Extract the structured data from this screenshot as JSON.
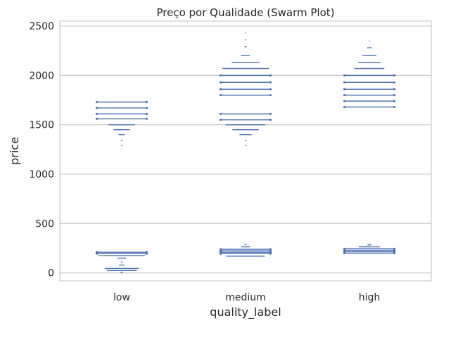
{
  "chart_data": {
    "type": "scatter",
    "subtype": "swarm",
    "title": "Preço por Qualidade (Swarm Plot)",
    "xlabel": "quality_label",
    "ylabel": "price",
    "categories": [
      "low",
      "medium",
      "high"
    ],
    "ylim": [
      -80,
      2550
    ],
    "yticks": [
      0,
      500,
      1000,
      1500,
      2000,
      2500
    ],
    "grid": true,
    "legend": "none",
    "marker_color": "#4c72b0",
    "groups": [
      {
        "category": "low",
        "bands": [
          {
            "price": 1290,
            "count": 2
          },
          {
            "price": 1340,
            "count": 3
          },
          {
            "price": 1400,
            "count": 14
          },
          {
            "price": 1450,
            "count": 38
          },
          {
            "price": 1500,
            "count": 62
          },
          {
            "price": 1560,
            "count": 120
          },
          {
            "price": 1610,
            "count": 120
          },
          {
            "price": 1670,
            "count": 120
          },
          {
            "price": 1730,
            "count": 120
          },
          {
            "price": 5,
            "count": 6
          },
          {
            "price": 25,
            "count": 70
          },
          {
            "price": 45,
            "count": 80
          },
          {
            "price": 80,
            "count": 12
          },
          {
            "price": 110,
            "count": 3
          },
          {
            "price": 150,
            "count": 20
          },
          {
            "price": 175,
            "count": 110
          },
          {
            "price": 195,
            "count": 120
          },
          {
            "price": 210,
            "count": 120
          }
        ]
      },
      {
        "category": "medium",
        "bands": [
          {
            "price": 1290,
            "count": 2
          },
          {
            "price": 1340,
            "count": 3
          },
          {
            "price": 1400,
            "count": 28
          },
          {
            "price": 1450,
            "count": 62
          },
          {
            "price": 1500,
            "count": 94
          },
          {
            "price": 1550,
            "count": 120
          },
          {
            "price": 1610,
            "count": 120
          },
          {
            "price": 1800,
            "count": 120
          },
          {
            "price": 1860,
            "count": 120
          },
          {
            "price": 1930,
            "count": 120
          },
          {
            "price": 2000,
            "count": 120
          },
          {
            "price": 2070,
            "count": 110
          },
          {
            "price": 2130,
            "count": 65
          },
          {
            "price": 2200,
            "count": 20
          },
          {
            "price": 2290,
            "count": 4
          },
          {
            "price": 2360,
            "count": 2
          },
          {
            "price": 2430,
            "count": 1
          },
          {
            "price": 170,
            "count": 90
          },
          {
            "price": 195,
            "count": 120
          },
          {
            "price": 210,
            "count": 120
          },
          {
            "price": 225,
            "count": 120
          },
          {
            "price": 240,
            "count": 120
          },
          {
            "price": 265,
            "count": 20
          },
          {
            "price": 290,
            "count": 4
          }
        ]
      },
      {
        "category": "high",
        "bands": [
          {
            "price": 1680,
            "count": 120
          },
          {
            "price": 1740,
            "count": 120
          },
          {
            "price": 1800,
            "count": 120
          },
          {
            "price": 1860,
            "count": 120
          },
          {
            "price": 1930,
            "count": 120
          },
          {
            "price": 2000,
            "count": 120
          },
          {
            "price": 2070,
            "count": 70
          },
          {
            "price": 2130,
            "count": 52
          },
          {
            "price": 2200,
            "count": 32
          },
          {
            "price": 2280,
            "count": 10
          },
          {
            "price": 2350,
            "count": 1
          },
          {
            "price": 200,
            "count": 120
          },
          {
            "price": 215,
            "count": 120
          },
          {
            "price": 230,
            "count": 120
          },
          {
            "price": 245,
            "count": 120
          },
          {
            "price": 265,
            "count": 50
          },
          {
            "price": 285,
            "count": 8
          }
        ]
      }
    ]
  }
}
